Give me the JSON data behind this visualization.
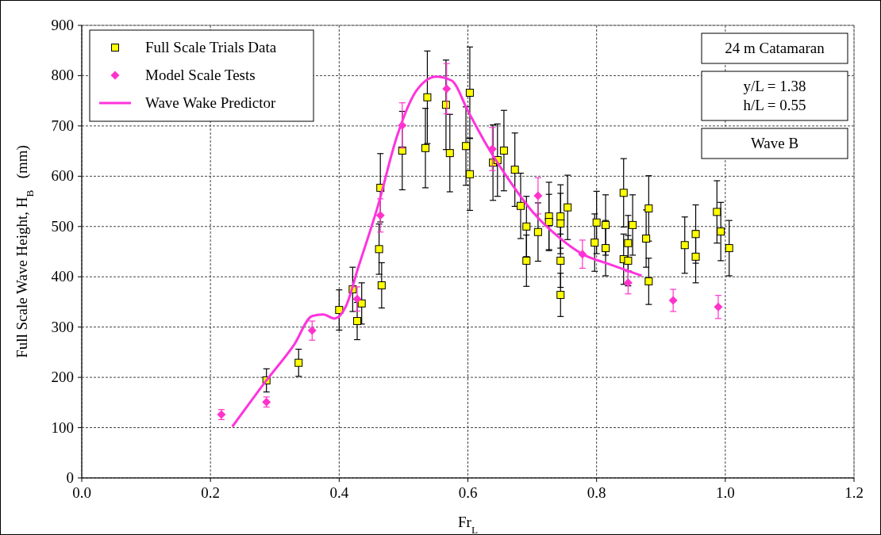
{
  "chart_data": {
    "type": "scatter",
    "xlabel": "Fr$_{L}$",
    "ylabel": "Full Scale Wave Height, H$_{B}$   (mm)",
    "xlim": [
      0,
      1.2
    ],
    "xticks": [
      {
        "value": 0,
        "label": "0.0"
      },
      {
        "value": 0.2,
        "label": "0.2"
      },
      {
        "value": 0.4,
        "label": "0.4"
      },
      {
        "value": 0.6,
        "label": "0.6"
      },
      {
        "value": 0.8,
        "label": "0.8"
      },
      {
        "value": 1,
        "label": "1.0"
      },
      {
        "value": 1.2,
        "label": "1.2"
      }
    ],
    "ylim": [
      0,
      900
    ],
    "yticks": [
      0,
      100,
      200,
      300,
      400,
      500,
      600,
      700,
      800,
      900
    ],
    "grid": true,
    "legend": "top left",
    "annotations": [
      "24 m Catamaran",
      "y/L = 1.38\nh/L = 0.55",
      "Wave B"
    ],
    "series": [
      {
        "name": "Full Scale Trials Data",
        "marker": "square",
        "color": "#ffff00",
        "x": [
          0.287,
          0.337,
          0.4,
          0.421,
          0.428,
          0.435,
          0.462,
          0.466,
          0.464,
          0.498,
          0.534,
          0.537,
          0.566,
          0.572,
          0.597,
          0.603,
          0.603,
          0.639,
          0.646,
          0.656,
          0.673,
          0.682,
          0.691,
          0.691,
          0.709,
          0.726,
          0.726,
          0.744,
          0.744,
          0.744,
          0.744,
          0.755,
          0.797,
          0.8,
          0.814,
          0.814,
          0.842,
          0.842,
          0.849,
          0.849,
          0.856,
          0.877,
          0.881,
          0.881,
          0.937,
          0.954,
          0.954,
          0.987,
          0.993,
          1.006
        ],
        "values": [
          194,
          229,
          334,
          375,
          312,
          347,
          455,
          383,
          577,
          651,
          656,
          757,
          742,
          646,
          660,
          766,
          604,
          627,
          632,
          651,
          613,
          541,
          500,
          432,
          489,
          520,
          509,
          520,
          506,
          432,
          364,
          538,
          468,
          508,
          503,
          457,
          567,
          435,
          467,
          432,
          503,
          476,
          536,
          391,
          463,
          485,
          440,
          529,
          490,
          457
        ],
        "errors": [
          23,
          27,
          40,
          44,
          37,
          41,
          50,
          45,
          68,
          78,
          79,
          92,
          89,
          77,
          78,
          91,
          72,
          75,
          72,
          80,
          73,
          65,
          60,
          51,
          58,
          68,
          55,
          63,
          60,
          53,
          43,
          64,
          57,
          62,
          60,
          55,
          68,
          50,
          55,
          50,
          60,
          57,
          65,
          46,
          56,
          58,
          52,
          62,
          58,
          55
        ]
      },
      {
        "name": "Model Scale Tests",
        "marker": "diamond",
        "color": "#ff33cc",
        "x": [
          0.217,
          0.287,
          0.358,
          0.428,
          0.464,
          0.498,
          0.567,
          0.638,
          0.709,
          0.778,
          0.849,
          0.919,
          0.989
        ],
        "values": [
          126,
          151,
          293,
          356,
          522,
          701,
          774,
          654,
          561,
          445,
          388,
          353,
          340
        ],
        "errors": [
          10,
          10,
          19,
          24,
          33,
          45,
          50,
          43,
          36,
          28,
          22,
          22,
          23
        ]
      },
      {
        "name": "Wave Wake Predictor",
        "type": "line",
        "marker": "none",
        "color": "#ff33dd",
        "x": [
          0.234,
          0.287,
          0.33,
          0.358,
          0.375,
          0.393,
          0.41,
          0.43,
          0.46,
          0.49,
          0.52,
          0.551,
          0.575,
          0.6,
          0.63,
          0.66,
          0.7,
          0.74,
          0.778,
          0.82,
          0.87
        ],
        "values": [
          102,
          194,
          265,
          322,
          325,
          317,
          340,
          420,
          540,
          680,
          770,
          798,
          790,
          730,
          660,
          600,
          530,
          480,
          445,
          425,
          402
        ]
      }
    ]
  }
}
